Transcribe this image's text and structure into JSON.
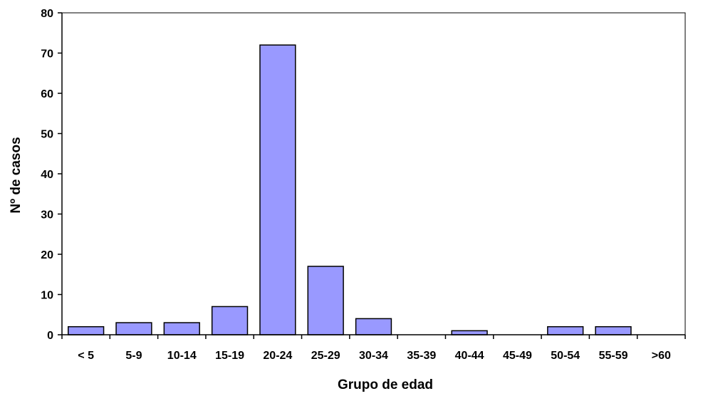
{
  "chart_data": {
    "type": "bar",
    "categories": [
      "< 5",
      "5-9",
      "10-14",
      "15-19",
      "20-24",
      "25-29",
      "30-34",
      "35-39",
      "40-44",
      "45-49",
      "50-54",
      "55-59",
      ">60"
    ],
    "values": [
      2,
      3,
      3,
      7,
      72,
      17,
      4,
      0,
      1,
      0,
      2,
      2,
      0
    ],
    "title": "",
    "xlabel": "Grupo de edad",
    "ylabel": "Nº de casos",
    "ylim": [
      0,
      80
    ],
    "yticks": [
      0,
      10,
      20,
      30,
      40,
      50,
      60,
      70,
      80
    ],
    "grid": false,
    "legend": "none",
    "colors": {
      "bar_fill": "#9999ff",
      "bar_stroke": "#000000",
      "axis": "#000000"
    }
  }
}
